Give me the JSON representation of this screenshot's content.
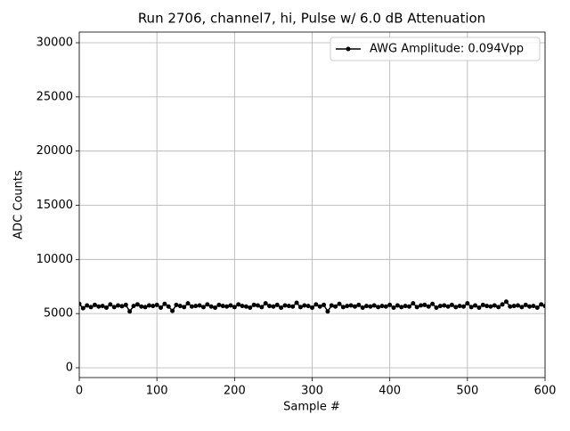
{
  "chart_data": {
    "type": "line",
    "title": "Run 2706, channel7, hi, Pulse w/ 6.0 dB Attenuation",
    "x_label": "Sample #",
    "y_label": "ADC Counts",
    "x": [
      0,
      5,
      10,
      15,
      20,
      25,
      30,
      35,
      40,
      45,
      50,
      55,
      60,
      65,
      70,
      75,
      80,
      85,
      90,
      95,
      100,
      105,
      110,
      115,
      120,
      125,
      130,
      135,
      140,
      145,
      150,
      155,
      160,
      165,
      170,
      175,
      180,
      185,
      190,
      195,
      200,
      205,
      210,
      215,
      220,
      225,
      230,
      235,
      240,
      245,
      250,
      255,
      260,
      265,
      270,
      275,
      280,
      285,
      290,
      295,
      300,
      305,
      310,
      315,
      320,
      325,
      330,
      335,
      340,
      345,
      350,
      355,
      360,
      365,
      370,
      375,
      380,
      385,
      390,
      395,
      400,
      405,
      410,
      415,
      420,
      425,
      430,
      435,
      440,
      445,
      450,
      455,
      460,
      465,
      470,
      475,
      480,
      485,
      490,
      495,
      500,
      505,
      510,
      515,
      520,
      525,
      530,
      535,
      540,
      545,
      550,
      555,
      560,
      565,
      570,
      575,
      580,
      585,
      590,
      595,
      600
    ],
    "series": [
      {
        "name": "AWG Amplitude: 0.094Vpp",
        "color": "#000000",
        "values": [
          5900,
          5500,
          5750,
          5600,
          5800,
          5650,
          5700,
          5550,
          5850,
          5600,
          5750,
          5680,
          5800,
          5200,
          5700,
          5850,
          5650,
          5600,
          5750,
          5700,
          5800,
          5550,
          5900,
          5650,
          5250,
          5800,
          5700,
          5600,
          5950,
          5650,
          5700,
          5750,
          5600,
          5850,
          5650,
          5550,
          5800,
          5700,
          5650,
          5750,
          5600,
          5850,
          5700,
          5650,
          5550,
          5800,
          5750,
          5600,
          5950,
          5700,
          5650,
          5800,
          5550,
          5750,
          5700,
          5650,
          6000,
          5600,
          5750,
          5700,
          5550,
          5850,
          5650,
          5800,
          5200,
          5750,
          5650,
          5900,
          5600,
          5700,
          5750,
          5650,
          5800,
          5550,
          5700,
          5650,
          5750,
          5600,
          5700,
          5650,
          5800,
          5550,
          5750,
          5600,
          5700,
          5650,
          5950,
          5600,
          5750,
          5800,
          5650,
          5900,
          5550,
          5700,
          5750,
          5650,
          5800,
          5600,
          5700,
          5650,
          5950,
          5600,
          5750,
          5550,
          5800,
          5700,
          5650,
          5750,
          5600,
          5850,
          6100,
          5650,
          5700,
          5750,
          5600,
          5800,
          5650,
          5700,
          5550,
          5850,
          5700
        ]
      }
    ],
    "xlim": [
      0,
      600
    ],
    "ylim": [
      -905,
      30987
    ],
    "xticks": [
      0,
      100,
      200,
      300,
      400,
      500,
      600
    ],
    "yticks": [
      0,
      5000,
      10000,
      15000,
      20000,
      25000,
      30000
    ],
    "grid": true,
    "legend": "upper right"
  }
}
